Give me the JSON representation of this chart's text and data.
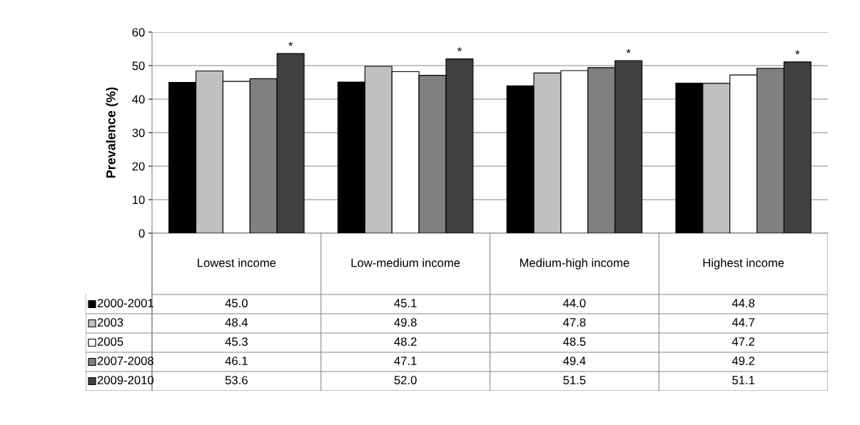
{
  "chart_data": {
    "type": "bar",
    "ylabel": "Prevalence (%)",
    "categories": [
      "Lowest income",
      "Low-medium income",
      "Medium-high income",
      "Highest income"
    ],
    "series": [
      {
        "name": "2000-2001",
        "color": "#000000",
        "values": [
          45.0,
          45.1,
          44.0,
          44.8
        ],
        "value_labels": [
          "45.0",
          "45.1",
          "44.0",
          "44.8"
        ]
      },
      {
        "name": "2003",
        "color": "#c0c0c0",
        "values": [
          48.4,
          49.8,
          47.8,
          44.7
        ],
        "value_labels": [
          "48.4",
          "49.8",
          "47.8",
          "44.7"
        ]
      },
      {
        "name": "2005",
        "color": "#ffffff",
        "values": [
          45.3,
          48.2,
          48.5,
          47.2
        ],
        "value_labels": [
          "45.3",
          "48.2",
          "48.5",
          "47.2"
        ]
      },
      {
        "name": "2007-2008",
        "color": "#808080",
        "values": [
          46.1,
          47.1,
          49.4,
          49.2
        ],
        "value_labels": [
          "46.1",
          "47.1",
          "49.4",
          "49.2"
        ]
      },
      {
        "name": "2009-2010",
        "color": "#404040",
        "values": [
          53.6,
          52.0,
          51.5,
          51.1
        ],
        "value_labels": [
          "53.6",
          "52.0",
          "51.5",
          "51.1"
        ]
      }
    ],
    "ylim": [
      0,
      60
    ],
    "yticks": [
      0,
      10,
      20,
      30,
      40,
      50,
      60
    ],
    "grid": "y",
    "legend": "bottom left",
    "annotations": [
      "*",
      "*",
      "*",
      "*"
    ]
  }
}
